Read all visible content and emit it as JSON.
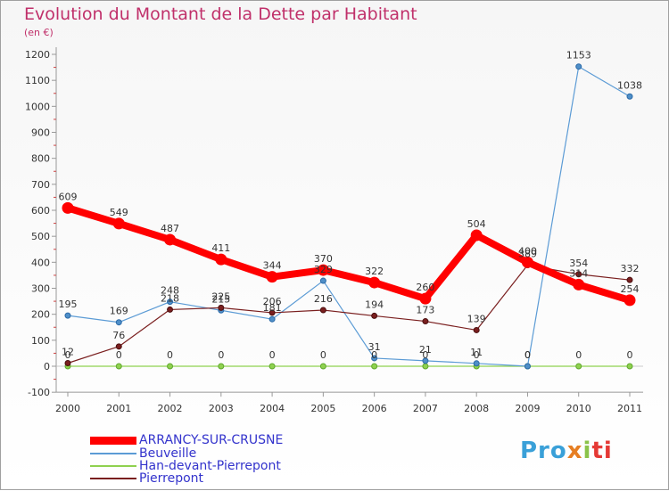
{
  "title": "Evolution du Montant de la Dette par Habitant",
  "subtitle": "(en €)",
  "logo": {
    "text": "Proxiti",
    "letters": [
      "Pro",
      "x",
      "i",
      "ti"
    ]
  },
  "chart_data": {
    "type": "line",
    "title": "Evolution du Montant de la Dette par Habitant",
    "subtitle": "(en €)",
    "x": [
      "2000",
      "2001",
      "2002",
      "2003",
      "2004",
      "2005",
      "2006",
      "2007",
      "2008",
      "2009",
      "2010",
      "2011"
    ],
    "ylim": [
      -100,
      1200
    ],
    "yticks": [
      "-100",
      "0",
      "100",
      "200",
      "300",
      "400",
      "500",
      "600",
      "700",
      "800",
      "900",
      "1000",
      "1100",
      "1200"
    ],
    "grid": false,
    "legend_position": "bottom-left",
    "series": [
      {
        "name": "ARRANCY-SUR-CRUSNE",
        "color": "#ff0000",
        "values": [
          609,
          549,
          487,
          411,
          344,
          370,
          322,
          260,
          504,
          400,
          314,
          254
        ],
        "labels": [
          "609",
          "549",
          "487",
          "411",
          "344",
          "370",
          "322",
          "260",
          "504",
          "400",
          "314",
          "254"
        ]
      },
      {
        "name": "Beuveille",
        "color": "#5b9bd5",
        "values": [
          195,
          169,
          248,
          215,
          181,
          329,
          31,
          21,
          11,
          0,
          1153,
          1038
        ],
        "labels": [
          "195",
          "169",
          "248",
          "215",
          "181",
          "329",
          "31",
          "21",
          "11",
          "0",
          "1153",
          "1038"
        ]
      },
      {
        "name": "Han-devant-Pierrepont",
        "color": "#8fd14f",
        "values": [
          0,
          0,
          0,
          0,
          0,
          0,
          0,
          0,
          0,
          0,
          0,
          0
        ],
        "labels": [
          "0",
          "0",
          "0",
          "0",
          "0",
          "0",
          "0",
          "0",
          "0",
          "0",
          "0",
          "0"
        ]
      },
      {
        "name": "Pierrepont",
        "color": "#7a1f1f",
        "values": [
          12,
          76,
          218,
          225,
          206,
          216,
          194,
          173,
          139,
          389,
          354,
          332
        ],
        "labels": [
          "12",
          "76",
          "218",
          "225",
          "206",
          "216",
          "194",
          "173",
          "139",
          "389",
          "354",
          "332"
        ]
      }
    ]
  }
}
